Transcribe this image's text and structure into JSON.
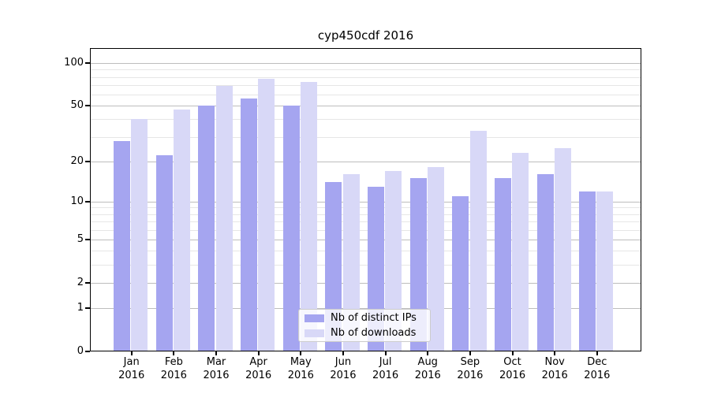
{
  "title": "cyp450cdf 2016",
  "colors": {
    "ips_bar": "#a5a5f0",
    "downloads_bar": "#d8d8f7",
    "grid_major": "#bdbdbd",
    "grid_minor": "#e6e6e6",
    "axis": "#000000",
    "legend_border": "#cccccc"
  },
  "legend": {
    "items": [
      {
        "label": "Nb of distinct IPs",
        "color_key": "ips_bar"
      },
      {
        "label": "Nb of downloads",
        "color_key": "downloads_bar"
      }
    ]
  },
  "chart_data": {
    "type": "bar",
    "title": "cyp450cdf 2016",
    "categories": [
      "Jan",
      "Feb",
      "Mar",
      "Apr",
      "May",
      "Jun",
      "Jul",
      "Aug",
      "Sep",
      "Oct",
      "Nov",
      "Dec"
    ],
    "category_year": "2016",
    "series": [
      {
        "name": "Nb of distinct IPs",
        "values": [
          28,
          22,
          50,
          56,
          50,
          14,
          13,
          15,
          11,
          15,
          16,
          12
        ]
      },
      {
        "name": "Nb of downloads",
        "values": [
          40,
          47,
          69,
          77,
          74,
          16,
          17,
          18,
          33,
          23,
          25,
          12
        ]
      }
    ],
    "xlabel": "",
    "ylabel": "",
    "yscale": "log1p",
    "ylim": [
      0,
      100
    ],
    "y_major_ticks": [
      0,
      1,
      2,
      5,
      10,
      20,
      50,
      100
    ],
    "y_minor_ticks": [
      3,
      4,
      6,
      7,
      8,
      9,
      30,
      40,
      60,
      70,
      80,
      90
    ],
    "grid": "both",
    "legend_position": "lower center"
  }
}
